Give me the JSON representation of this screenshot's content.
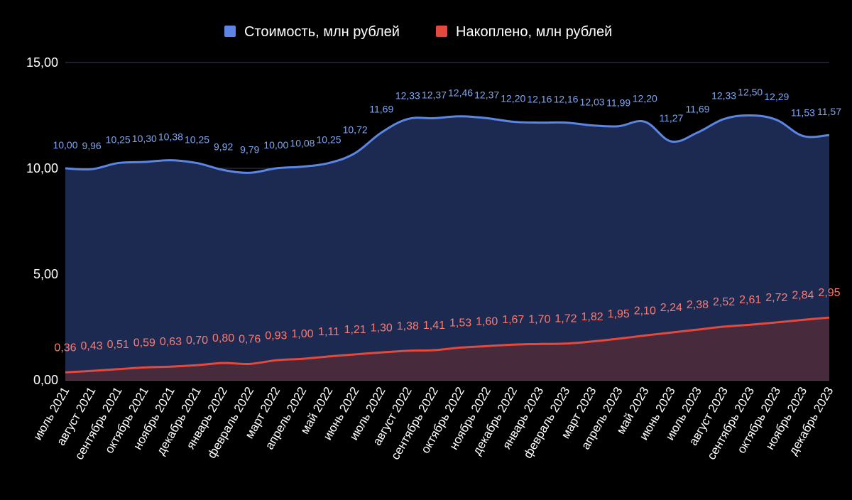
{
  "chart_data": {
    "type": "area",
    "categories": [
      "июль 2021",
      "август 2021",
      "сентябрь 2021",
      "октябрь 2021",
      "ноябрь 2021",
      "декабрь 2021",
      "январь 2022",
      "февраль 2022",
      "март 2022",
      "апрель 2022",
      "май 2022",
      "июнь 2022",
      "июль 2022",
      "август 2022",
      "сентябрь 2022",
      "октябрь 2022",
      "ноябрь 2022",
      "декабрь 2022",
      "январь 2023",
      "февраль 2023",
      "март 2023",
      "апрель 2023",
      "май 2023",
      "июнь 2023",
      "июль 2023",
      "август 2023",
      "сентябрь 2023",
      "октябрь 2023",
      "ноябрь 2023",
      "декабрь 2023"
    ],
    "series": [
      {
        "name": "Стоимость, млн рублей",
        "color": "#5b86e5",
        "fill": "#1c2a52",
        "values": [
          10.0,
          9.96,
          10.25,
          10.3,
          10.38,
          10.25,
          9.92,
          9.79,
          10.0,
          10.08,
          10.25,
          10.72,
          11.69,
          12.33,
          12.37,
          12.46,
          12.37,
          12.2,
          12.16,
          12.16,
          12.03,
          11.99,
          12.2,
          11.27,
          11.69,
          12.33,
          12.5,
          12.29,
          11.53,
          11.57
        ],
        "labels": [
          "10,00",
          "9,96",
          "10,25",
          "10,30",
          "10,38",
          "10,25",
          "9,92",
          "9,79",
          "10,00",
          "10,08",
          "10,25",
          "10,72",
          "11,69",
          "12,33",
          "12,37",
          "12,46",
          "12,37",
          "12,20",
          "12,16",
          "12,16",
          "12,03",
          "11,99",
          "12,20",
          "11,27",
          "11,69",
          "12,33",
          "12,50",
          "12,29",
          "11,53",
          "11,57"
        ]
      },
      {
        "name": "Накоплено, млн рублей",
        "color": "#e34a3d",
        "fill": "#4a2a3a",
        "values": [
          0.36,
          0.43,
          0.51,
          0.59,
          0.63,
          0.7,
          0.8,
          0.76,
          0.93,
          1.0,
          1.11,
          1.21,
          1.3,
          1.38,
          1.41,
          1.53,
          1.6,
          1.67,
          1.7,
          1.72,
          1.82,
          1.95,
          2.1,
          2.24,
          2.38,
          2.52,
          2.61,
          2.72,
          2.84,
          2.95
        ],
        "labels": [
          "0,36",
          "0,43",
          "0,51",
          "0,59",
          "0,63",
          "0,70",
          "0,80",
          "0,76",
          "0,93",
          "1,00",
          "1,11",
          "1,21",
          "1,30",
          "1,38",
          "1,41",
          "1,53",
          "1,60",
          "1,67",
          "1,70",
          "1,72",
          "1,82",
          "1,95",
          "2,10",
          "2,24",
          "2,38",
          "2,52",
          "2,61",
          "2,72",
          "2,84",
          "2,95"
        ]
      }
    ],
    "yticks": [
      "0,00",
      "5,00",
      "10,00",
      "15,00"
    ],
    "ytick_values": [
      0,
      5,
      10,
      15
    ],
    "ylim": [
      0,
      15
    ],
    "grid": true,
    "legend_position": "top-center"
  }
}
